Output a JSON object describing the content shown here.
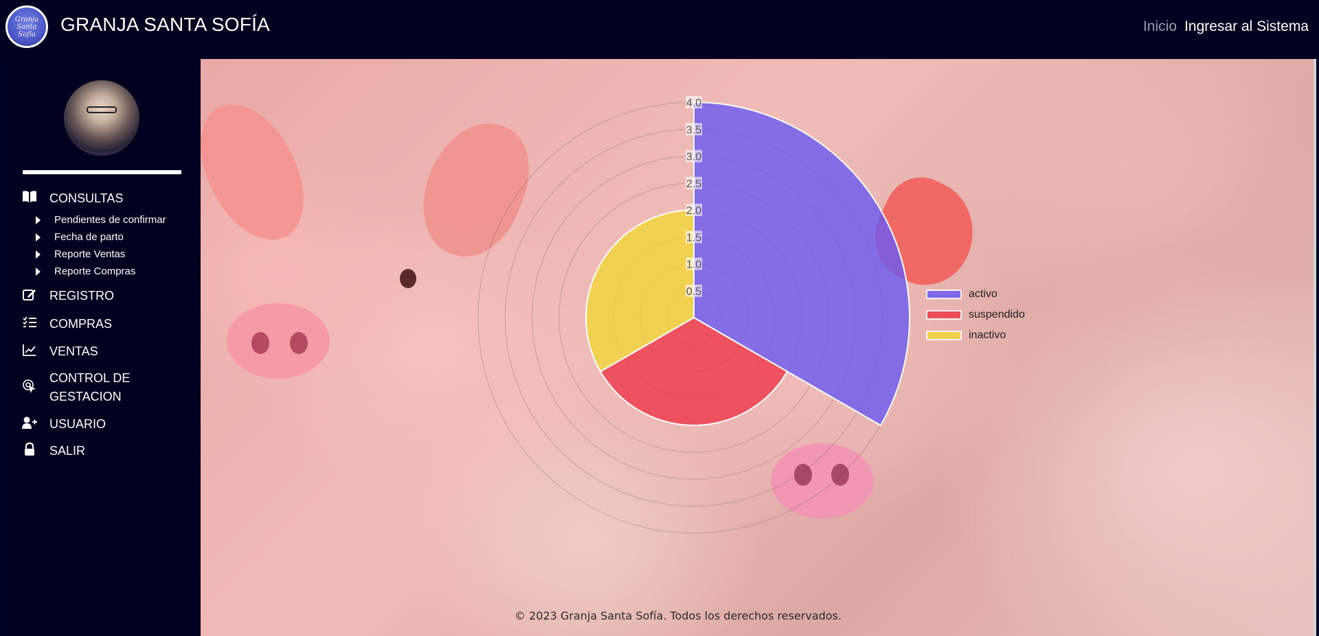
{
  "header": {
    "logo_text": "Granja Santa Sofía",
    "title": "GRANJA SANTA SOFÍA",
    "nav": [
      {
        "label": "Inicio"
      },
      {
        "label": "Ingresar al Sistema"
      }
    ]
  },
  "sidebar": {
    "menu": [
      {
        "label": "CONSULTAS",
        "icon": "open-book-icon"
      },
      {
        "label": "REGISTRO",
        "icon": "edit-icon"
      },
      {
        "label": "COMPRAS",
        "icon": "checklist-icon"
      },
      {
        "label": "VENTAS",
        "icon": "chart-line-icon"
      },
      {
        "label": "CONTROL DE GESTACION",
        "icon": "pointer-click-icon"
      },
      {
        "label": "USUARIO",
        "icon": "user-plus-icon"
      },
      {
        "label": "SALIR",
        "icon": "lock-icon"
      }
    ],
    "consultas_sub": [
      {
        "label": "Pendientes de confirmar"
      },
      {
        "label": "Fecha de parto"
      },
      {
        "label": "Reporte Ventas"
      },
      {
        "label": "Reporte Compras"
      }
    ]
  },
  "chart_data": {
    "type": "polarArea",
    "categories": [
      "activo",
      "suspendido",
      "inactivo"
    ],
    "values": [
      4,
      2,
      2
    ],
    "colors": [
      "#6d5cf0",
      "#ee3a4a",
      "#f2d63a"
    ],
    "r_ticks": [
      "0.5",
      "1.0",
      "1.5",
      "2.0",
      "2.5",
      "3.0",
      "3.5",
      "4.0"
    ],
    "rlim": [
      0,
      4
    ],
    "legend_position": "right"
  },
  "footer": {
    "text": "© 2023 Granja Santa Sofía. Todos los derechos reservados."
  }
}
